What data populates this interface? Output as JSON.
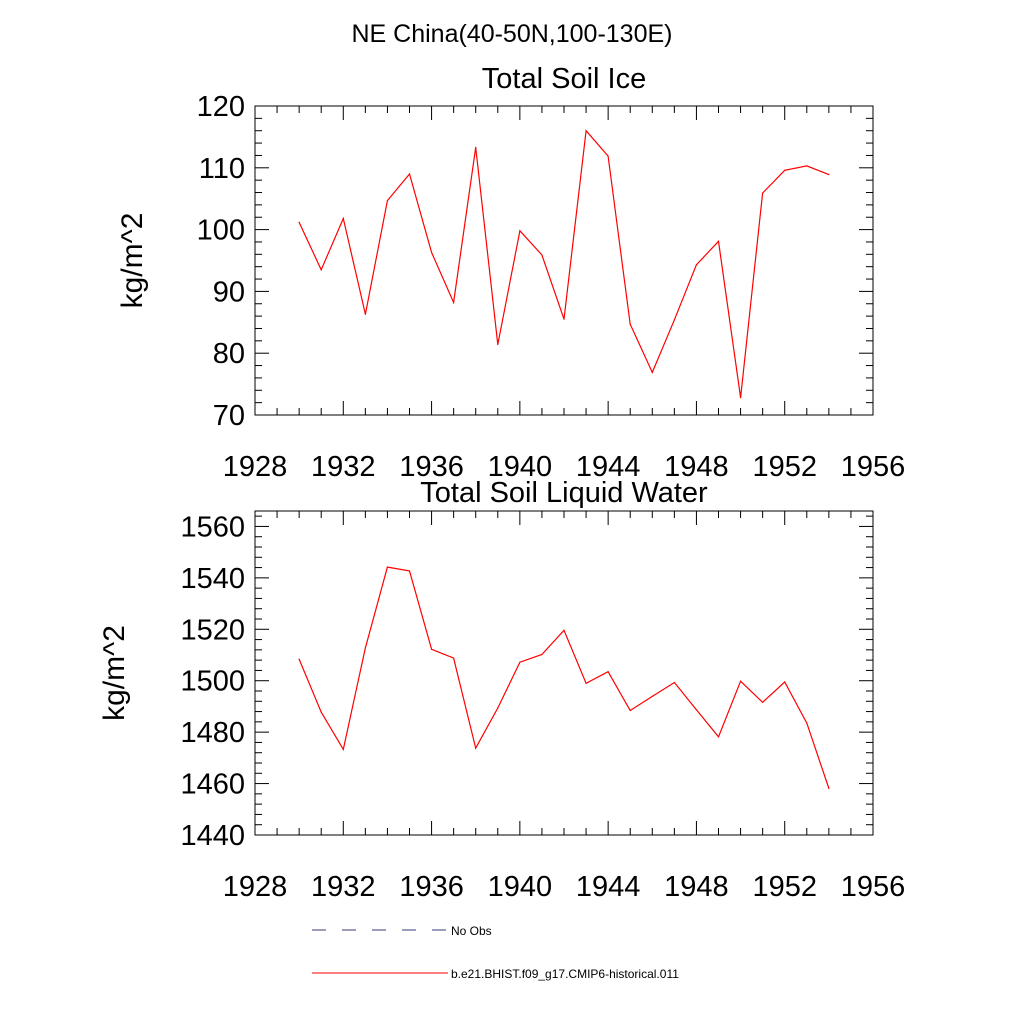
{
  "figure": {
    "main_title": "NE China(40-50N,100-130E)"
  },
  "chart_data": [
    {
      "type": "line",
      "title": "Total Soil Ice",
      "xlabel": "",
      "ylabel": "kg/m^2",
      "xlim": [
        1928,
        1956
      ],
      "ylim": [
        70,
        120
      ],
      "xticks": [
        1928,
        1932,
        1936,
        1940,
        1944,
        1948,
        1952,
        1956
      ],
      "yticks": [
        70,
        80,
        90,
        100,
        110,
        120
      ],
      "x_minor_step": 1,
      "y_minor_step": 2,
      "x": [
        1930,
        1931,
        1932,
        1933,
        1934,
        1935,
        1936,
        1937,
        1938,
        1939,
        1940,
        1941,
        1942,
        1943,
        1944,
        1945,
        1946,
        1947,
        1948,
        1949,
        1950,
        1951,
        1952,
        1953,
        1954
      ],
      "series": [
        {
          "name": "b.e21.BHIST.f09_g17.CMIP6-historical.011",
          "color": "#ff0000",
          "values": [
            101.2,
            93.5,
            101.8,
            86.3,
            104.7,
            109.0,
            96.3,
            88.2,
            113.3,
            81.4,
            99.8,
            95.9,
            85.5,
            116.0,
            111.9,
            84.7,
            76.9,
            85.4,
            94.3,
            98.1,
            72.8,
            105.9,
            109.6,
            110.3,
            108.9
          ]
        }
      ],
      "grid": false
    },
    {
      "type": "line",
      "title": "Total Soil Liquid Water",
      "xlabel": "",
      "ylabel": "kg/m^2",
      "xlim": [
        1928,
        1956
      ],
      "ylim": [
        1440,
        1566
      ],
      "xticks": [
        1928,
        1932,
        1936,
        1940,
        1944,
        1948,
        1952,
        1956
      ],
      "yticks": [
        1440,
        1460,
        1480,
        1500,
        1520,
        1540,
        1560
      ],
      "x_minor_step": 1,
      "y_minor_step": 4,
      "x": [
        1930,
        1931,
        1932,
        1933,
        1934,
        1935,
        1936,
        1937,
        1938,
        1939,
        1940,
        1941,
        1942,
        1943,
        1944,
        1945,
        1946,
        1947,
        1948,
        1949,
        1950,
        1951,
        1952,
        1953,
        1954
      ],
      "series": [
        {
          "name": "b.e21.BHIST.f09_g17.CMIP6-historical.011",
          "color": "#ff0000",
          "values": [
            1508.4,
            1487.8,
            1473.3,
            1512.8,
            1544.2,
            1542.7,
            1512.2,
            1508.8,
            1473.8,
            1489.4,
            1507.2,
            1510.2,
            1519.6,
            1499.0,
            1503.5,
            1488.4,
            1493.9,
            1499.3,
            1488.7,
            1478.2,
            1499.8,
            1491.6,
            1499.5,
            1483.5,
            1458.1
          ]
        }
      ],
      "grid": false
    }
  ],
  "legend": {
    "placement": "bottom",
    "items": [
      {
        "label": "No Obs",
        "color": "#3a3a7a",
        "style": "dashed"
      },
      {
        "label": "b.e21.BHIST.f09_g17.CMIP6-historical.011",
        "color": "#ff0000",
        "style": "solid"
      }
    ]
  }
}
